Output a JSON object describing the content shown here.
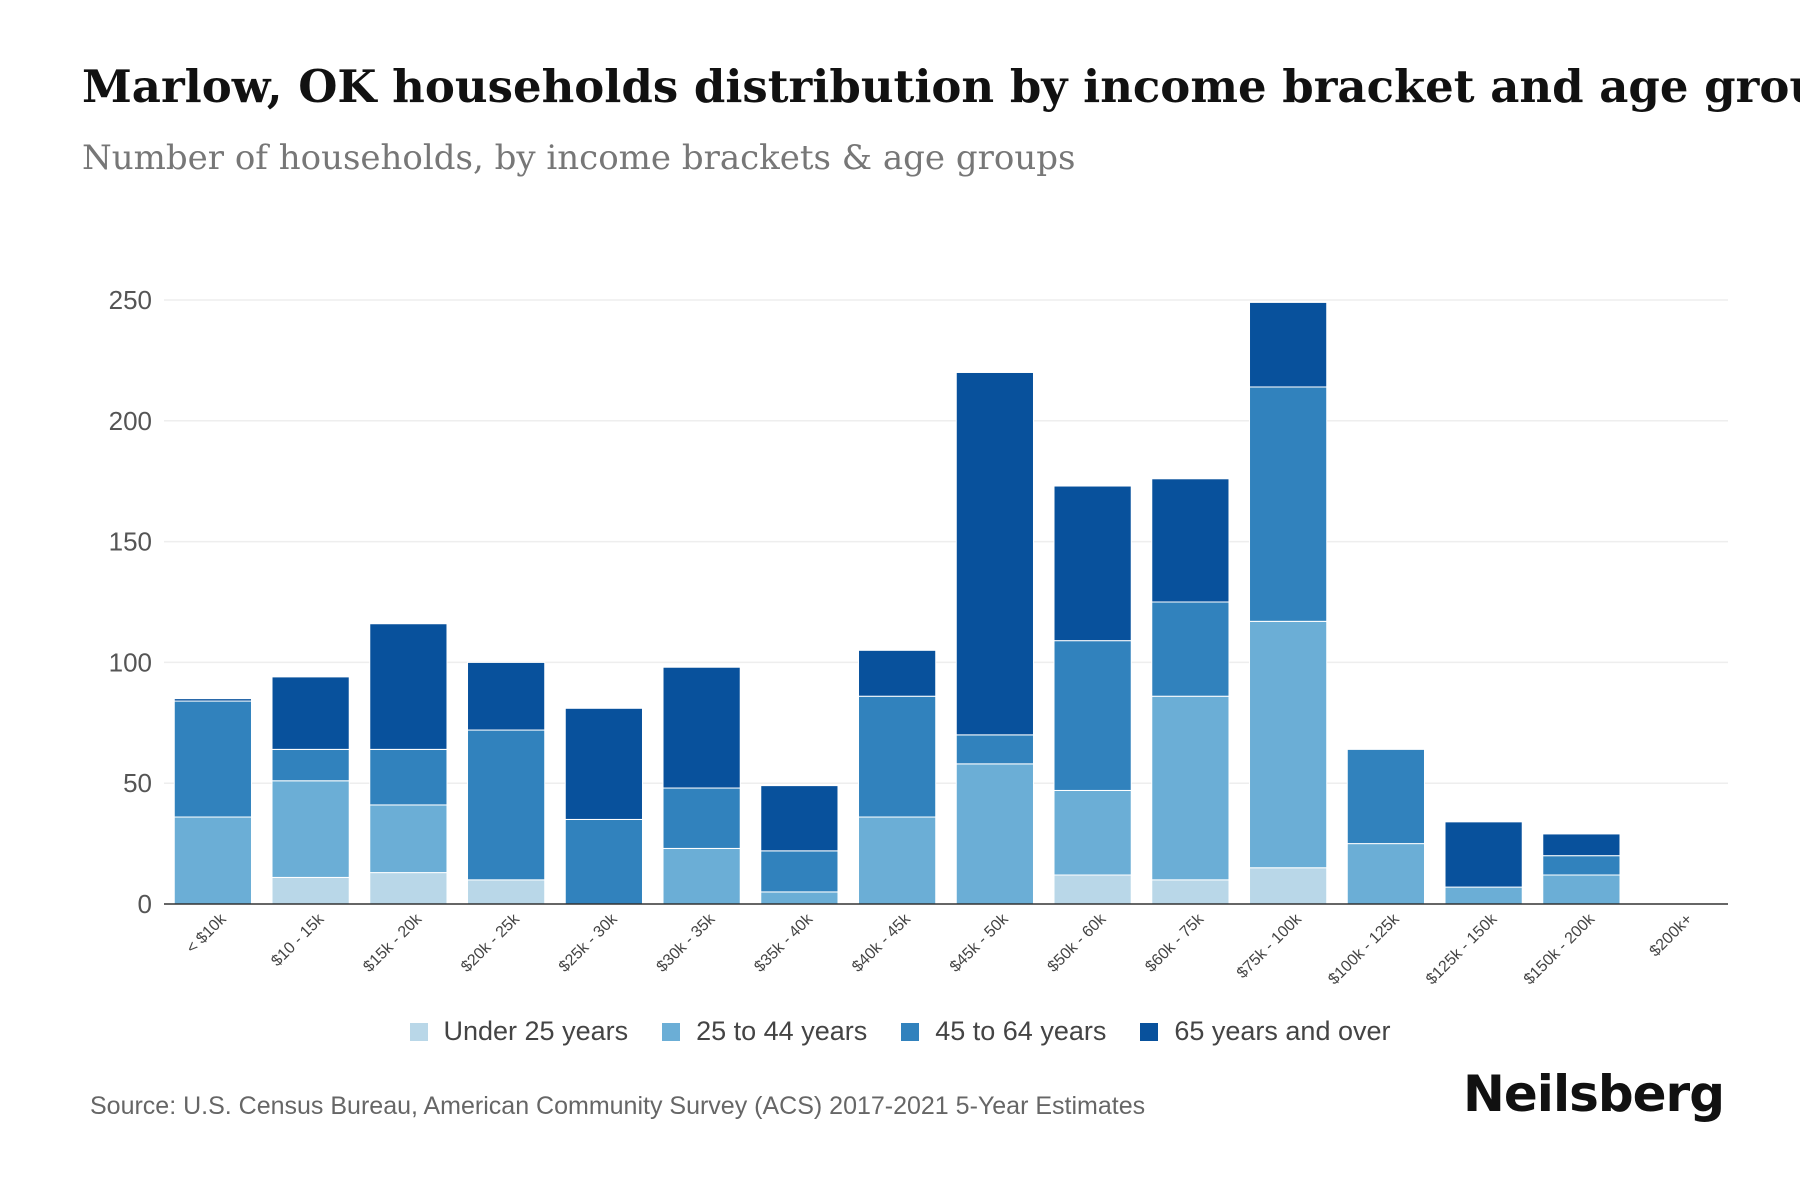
{
  "header": {
    "title": "Marlow, OK households distribution by income bracket and age group",
    "subtitle": "Number of households, by income brackets & age groups"
  },
  "footer": {
    "source": "Source: U.S. Census Bureau, American Community Survey (ACS) 2017-2021 5-Year Estimates",
    "brand": "Neilsberg"
  },
  "chart_data": {
    "type": "bar",
    "stacked": true,
    "title": "Marlow, OK households distribution by income bracket and age group",
    "subtitle": "Number of households, by income brackets & age groups",
    "xlabel": "",
    "ylabel": "",
    "ylim": [
      0,
      250
    ],
    "yticks": [
      0,
      50,
      100,
      150,
      200,
      250
    ],
    "grid": true,
    "legend_position": "bottom",
    "categories": [
      "< $10k",
      "$10 - 15k",
      "$15k - 20k",
      "$20k - 25k",
      "$25k - 30k",
      "$30k - 35k",
      "$35k - 40k",
      "$40k - 45k",
      "$45k - 50k",
      "$50k - 60k",
      "$60k - 75k",
      "$75k - 100k",
      "$100k - 125k",
      "$125k - 150k",
      "$150k - 200k",
      "$200k+"
    ],
    "series": [
      {
        "name": "Under 25 years",
        "color": "#b9d7e8",
        "values": [
          0,
          11,
          13,
          10,
          0,
          0,
          0,
          0,
          0,
          12,
          10,
          15,
          0,
          0,
          0,
          0
        ]
      },
      {
        "name": "25 to 44 years",
        "color": "#6baed6",
        "values": [
          36,
          40,
          28,
          0,
          0,
          23,
          5,
          36,
          58,
          35,
          76,
          102,
          25,
          7,
          12,
          0
        ]
      },
      {
        "name": "45 to 64 years",
        "color": "#3182bd",
        "values": [
          48,
          13,
          23,
          62,
          35,
          25,
          17,
          50,
          12,
          62,
          39,
          97,
          39,
          0,
          8,
          0
        ]
      },
      {
        "name": "65 years and over",
        "color": "#08519c",
        "values": [
          1,
          30,
          52,
          28,
          46,
          50,
          27,
          19,
          150,
          64,
          51,
          35,
          0,
          27,
          9,
          0
        ]
      }
    ]
  }
}
